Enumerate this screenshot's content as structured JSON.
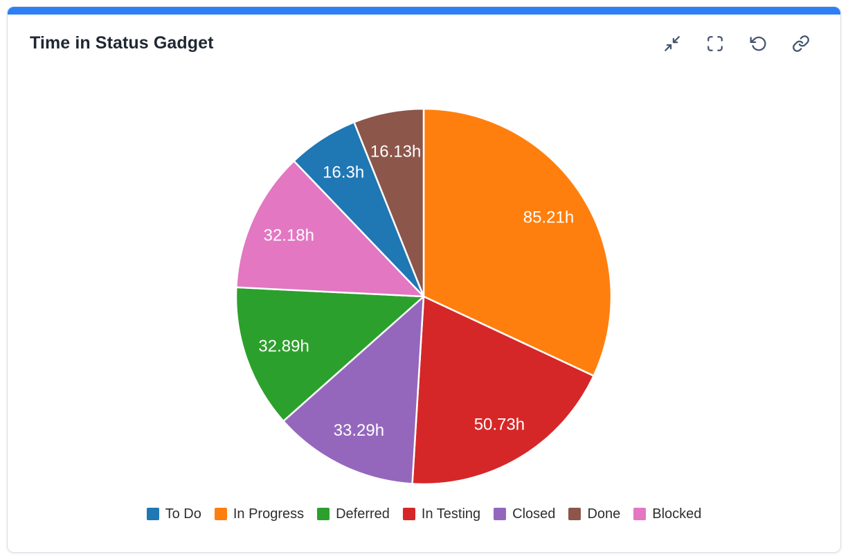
{
  "card": {
    "title": "Time in Status Gadget",
    "accent_color": "#2d7ff8",
    "toolbar": {
      "icon_color": "#44546f",
      "icons": [
        "collapse-icon",
        "fullscreen-icon",
        "refresh-icon",
        "link-icon"
      ]
    }
  },
  "chart_data": {
    "type": "pie",
    "title": "Time in Status Gadget",
    "unit": "h",
    "legend_position": "bottom",
    "start_angle_deg": 0,
    "direction": "clockwise",
    "slice_border_color": "#ffffff",
    "label_color": "#ffffff",
    "slices": [
      {
        "label": "To Do",
        "value": 16.3,
        "display": "16.3h",
        "color": "#1f77b4"
      },
      {
        "label": "In Progress",
        "value": 85.21,
        "display": "85.21h",
        "color": "#ff7f0e"
      },
      {
        "label": "Deferred",
        "value": 32.89,
        "display": "32.89h",
        "color": "#2ca02c"
      },
      {
        "label": "In Testing",
        "value": 50.73,
        "display": "50.73h",
        "color": "#d62728"
      },
      {
        "label": "Closed",
        "value": 33.29,
        "display": "33.29h",
        "color": "#9467bd"
      },
      {
        "label": "Done",
        "value": 16.13,
        "display": "16.13h",
        "color": "#8c564b"
      },
      {
        "label": "Blocked",
        "value": 32.18,
        "display": "32.18h",
        "color": "#e377c2"
      }
    ],
    "pie_order_clockwise_from_top": [
      "In Progress",
      "In Testing",
      "Closed",
      "Deferred",
      "Blocked",
      "To Do",
      "Done"
    ]
  }
}
